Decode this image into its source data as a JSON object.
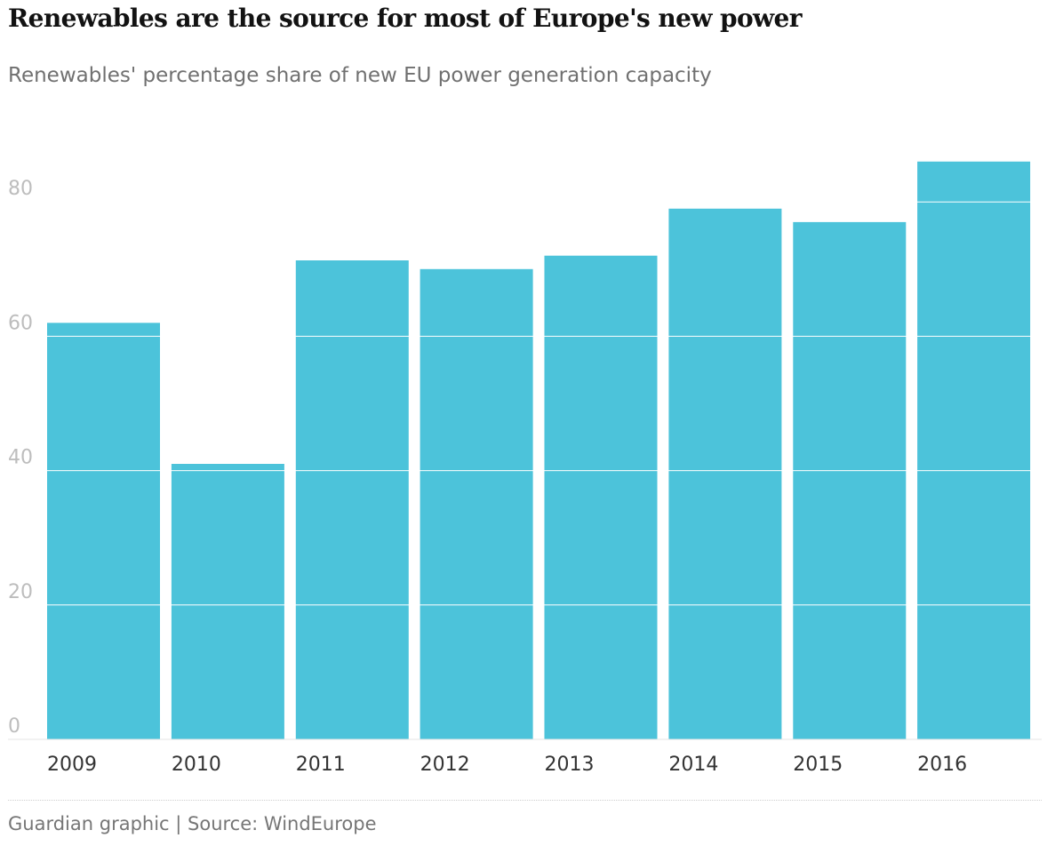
{
  "header": {
    "title": "Renewables are the source for most of Europe's new power",
    "subtitle": "Renewables' percentage share of new EU power generation capacity"
  },
  "footer": {
    "source": "Guardian graphic | Source: WindEurope"
  },
  "colors": {
    "bar": "#4cc3da",
    "gridline": "#ffffff",
    "axis_tick_label": "#bdbdbd",
    "category_label": "#333333"
  },
  "chart_data": {
    "type": "bar",
    "title": "Renewables are the source for most of Europe's new power",
    "subtitle": "Renewables' percentage share of new EU power generation capacity",
    "xlabel": "",
    "ylabel": "",
    "categories": [
      "2009",
      "2010",
      "2011",
      "2012",
      "2013",
      "2014",
      "2015",
      "2016"
    ],
    "values": [
      62,
      41,
      71.3,
      70,
      72,
      79,
      77,
      86
    ],
    "ylim": [
      0,
      86
    ],
    "yticks": [
      "0",
      "20",
      "40",
      "60",
      "80"
    ],
    "grid": true,
    "legend": "none"
  }
}
